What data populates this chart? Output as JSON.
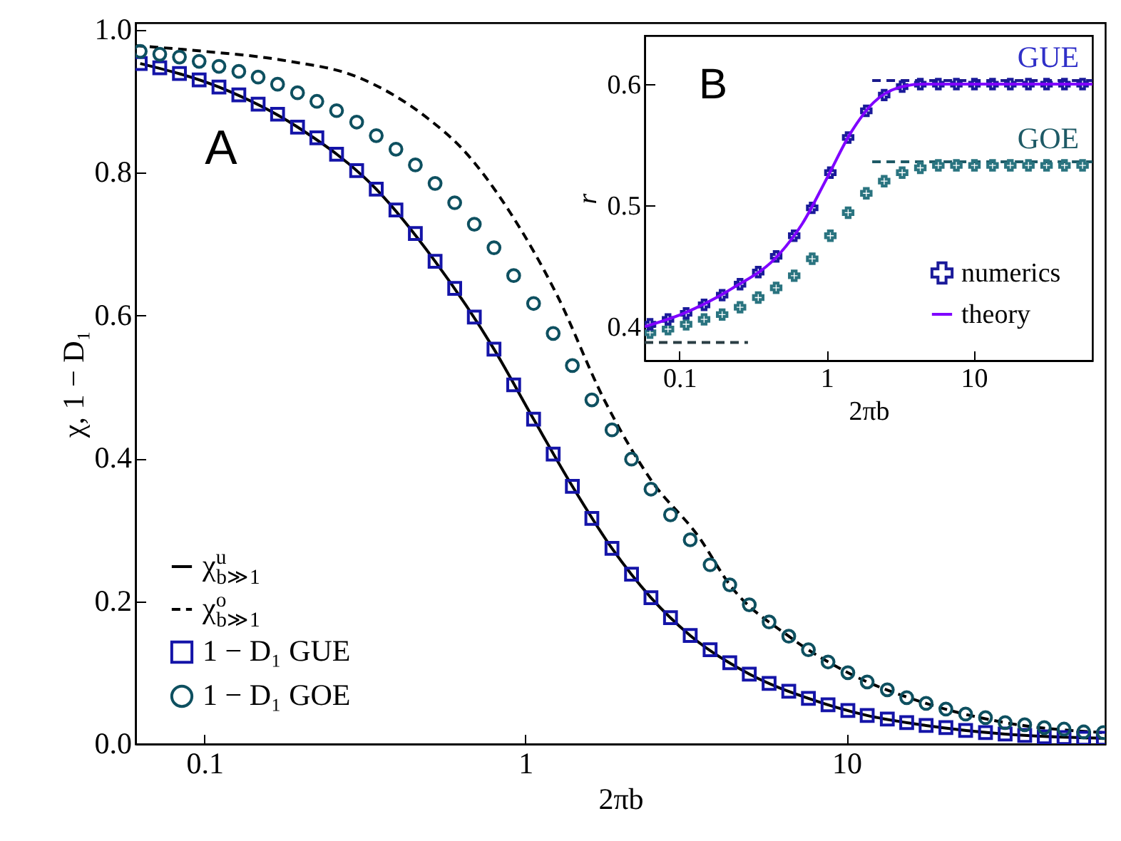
{
  "chart_data": [
    {
      "type": "scatter",
      "xlabel": "2πb",
      "ylabel": "χ, 1 − D₁",
      "log": "x",
      "legend": "bottom left",
      "xlim": [
        0.061,
        64
      ],
      "xticks": [
        0.1,
        1,
        10
      ],
      "ylim": [
        0,
        1.01
      ],
      "yticks": [
        {
          "value": 0,
          "label": "0.0"
        },
        0.2,
        0.4,
        0.6,
        0.8,
        {
          "value": 1,
          "label": "1.0"
        }
      ],
      "annotations": [
        "A"
      ],
      "x": [
        0.0631,
        0.0726,
        0.0836,
        0.0963,
        0.111,
        0.128,
        0.147,
        0.169,
        0.195,
        0.224,
        0.258,
        0.298,
        0.343,
        0.395,
        0.454,
        0.523,
        0.602,
        0.693,
        0.798,
        0.919,
        1.06,
        1.22,
        1.4,
        1.61,
        1.86,
        2.14,
        2.46,
        2.83,
        3.26,
        3.76,
        4.33,
        4.98,
        5.74,
        6.61,
        7.61,
        8.76,
        10.1,
        11.6,
        13.4,
        15.4,
        17.7,
        20.4,
        23.5,
        27.1,
        31.2,
        35.9,
        41.3,
        47.6,
        54.8,
        63.1
      ],
      "series": [
        {
          "name": "χ$^{u}$$_{b≫1}$",
          "type": "line",
          "line_style": "solid",
          "color": "#000000",
          "x": [
            0.0631,
            0.111,
            0.195,
            0.343,
            0.523,
            0.798,
            1.06,
            1.4,
            1.86,
            2.46,
            3.26,
            4.98,
            7.61,
            11.6,
            17.7,
            31.2,
            63.1
          ],
          "values": [
            0.953,
            0.92,
            0.864,
            0.777,
            0.676,
            0.553,
            0.455,
            0.361,
            0.274,
            0.205,
            0.152,
            0.098,
            0.064,
            0.04,
            0.026,
            0.014,
            0.008
          ]
        },
        {
          "name": "χ$^{o}$$_{b≫1}$",
          "type": "line",
          "line_style": "dashed",
          "color": "#000000",
          "x": [
            0.061,
            0.1,
            0.179,
            0.3,
            0.5,
            0.631,
            0.894,
            1.25,
            1.76,
            2.46,
            3.48,
            4.33,
            6.61,
            10.1,
            17.7,
            31.2,
            63.1
          ],
          "values": [
            0.978,
            0.97,
            0.957,
            0.934,
            0.875,
            0.835,
            0.745,
            0.63,
            0.482,
            0.37,
            0.289,
            0.223,
            0.151,
            0.1,
            0.057,
            0.03,
            0.016
          ]
        },
        {
          "name": "1 − D₁ GUE",
          "marker": "square",
          "color": "#1414a8",
          "values": [
            0.953,
            0.947,
            0.939,
            0.93,
            0.92,
            0.909,
            0.896,
            0.882,
            0.864,
            0.849,
            0.826,
            0.803,
            0.777,
            0.748,
            0.715,
            0.676,
            0.638,
            0.598,
            0.553,
            0.503,
            0.455,
            0.406,
            0.361,
            0.316,
            0.274,
            0.238,
            0.205,
            0.177,
            0.152,
            0.132,
            0.114,
            0.098,
            0.085,
            0.074,
            0.064,
            0.055,
            0.047,
            0.04,
            0.035,
            0.03,
            0.026,
            0.023,
            0.019,
            0.016,
            0.014,
            0.012,
            0.01,
            0.009,
            0.008,
            0.008
          ]
        },
        {
          "name": "1 − D₁ GOE",
          "marker": "circle",
          "color": "#0e5060",
          "values": [
            0.97,
            0.966,
            0.962,
            0.956,
            0.949,
            0.942,
            0.934,
            0.924,
            0.912,
            0.9,
            0.887,
            0.871,
            0.852,
            0.833,
            0.811,
            0.785,
            0.758,
            0.728,
            0.695,
            0.656,
            0.617,
            0.575,
            0.53,
            0.482,
            0.44,
            0.399,
            0.357,
            0.321,
            0.286,
            0.251,
            0.223,
            0.195,
            0.171,
            0.151,
            0.132,
            0.115,
            0.1,
            0.087,
            0.076,
            0.065,
            0.057,
            0.049,
            0.042,
            0.037,
            0.03,
            0.027,
            0.023,
            0.021,
            0.017,
            0.016
          ]
        }
      ]
    },
    {
      "type": "scatter",
      "xlabel": "2πb",
      "ylabel": "r",
      "log": "x",
      "legend": "bottom right",
      "xlim": [
        0.058,
        64
      ],
      "xticks": [
        0.1,
        1,
        10
      ],
      "ylim": [
        0.372,
        0.64
      ],
      "yticks": [
        0.4,
        0.5,
        0.6
      ],
      "annotations": [
        "B",
        "GUE",
        "GOE"
      ],
      "x": [
        0.0631,
        0.0836,
        0.111,
        0.147,
        0.195,
        0.258,
        0.343,
        0.454,
        0.602,
        0.798,
        1.06,
        1.4,
        1.86,
        2.46,
        3.26,
        4.33,
        5.74,
        7.61,
        10.1,
        13.4,
        17.7,
        23.5,
        31.2,
        41.3,
        54.8
      ],
      "series": [
        {
          "type": "line",
          "line_style": "dashed",
          "color": "#1a1a8c",
          "x": [
            2.04,
            64
          ],
          "values": [
            0.603,
            0.603
          ]
        },
        {
          "type": "line",
          "line_style": "dashed",
          "color": "#1e5a66",
          "x": [
            2.04,
            64
          ],
          "values": [
            0.536,
            0.536
          ]
        },
        {
          "type": "line",
          "line_style": "dashed",
          "color": "#2a3e44",
          "x": [
            0.058,
            0.292
          ],
          "values": [
            0.387,
            0.387
          ]
        },
        {
          "marker": "cross",
          "color": "#2a7480",
          "values": [
            0.395,
            0.398,
            0.402,
            0.406,
            0.41,
            0.416,
            0.424,
            0.432,
            0.442,
            0.456,
            0.475,
            0.494,
            0.51,
            0.52,
            0.527,
            0.531,
            0.533,
            0.533,
            0.533,
            0.533,
            0.533,
            0.533,
            0.533,
            0.533,
            0.533
          ]
        },
        {
          "name": "numerics",
          "marker": "cross",
          "color": "#1a1a9a",
          "values": [
            0.402,
            0.406,
            0.411,
            0.418,
            0.426,
            0.435,
            0.445,
            0.458,
            0.475,
            0.498,
            0.527,
            0.556,
            0.578,
            0.591,
            0.598,
            0.6,
            0.6,
            0.6,
            0.6,
            0.6,
            0.6,
            0.6,
            0.6,
            0.6,
            0.6
          ]
        },
        {
          "name": "theory",
          "type": "line",
          "line_style": "solid",
          "color": "#7f00ff",
          "x": [
            0.058,
            0.107,
            0.224,
            0.478,
            0.684,
            1.0,
            1.46,
            2.09,
            3.06,
            4.47,
            64
          ],
          "values": [
            0.4,
            0.411,
            0.431,
            0.46,
            0.485,
            0.522,
            0.56,
            0.585,
            0.597,
            0.6,
            0.6
          ]
        }
      ]
    }
  ]
}
